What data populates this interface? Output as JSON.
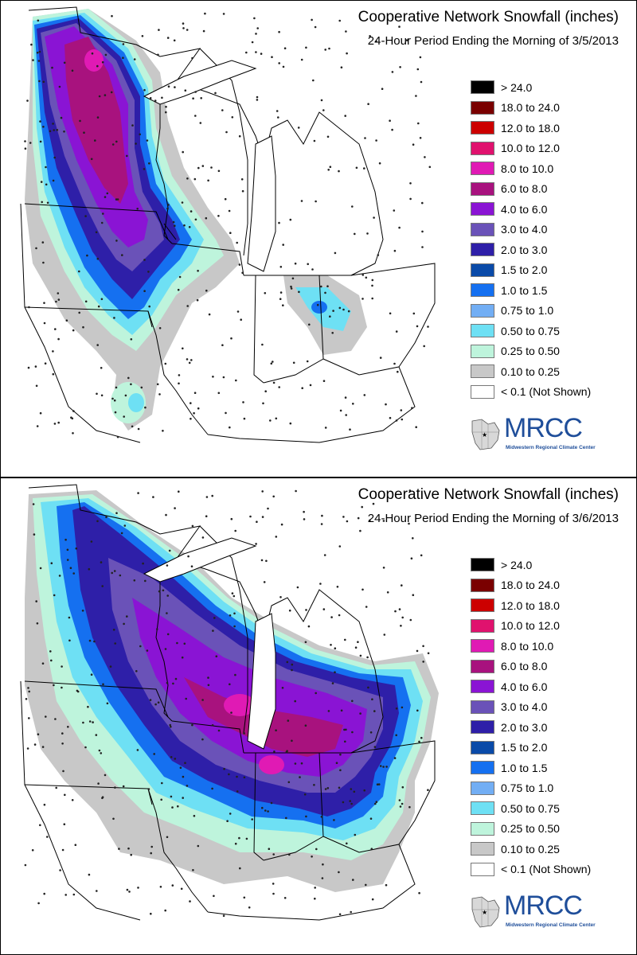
{
  "panels": [
    {
      "title": "Cooperative Network Snowfall (inches)",
      "subtitle": "24-Hour Period Ending the Morning of 3/5/2013"
    },
    {
      "title": "Cooperative Network Snowfall (inches)",
      "subtitle": "24-Hour Period Ending the Morning of 3/6/2013"
    }
  ],
  "legend": [
    {
      "label": "> 24.0",
      "color": "#000000"
    },
    {
      "label": "18.0 to 24.0",
      "color": "#7a0000"
    },
    {
      "label": "12.0 to 18.0",
      "color": "#cc0000"
    },
    {
      "label": "10.0 to 12.0",
      "color": "#e0126e"
    },
    {
      "label": "8.0 to 10.0",
      "color": "#e01ab4"
    },
    {
      "label": "6.0 to 8.0",
      "color": "#a8127e"
    },
    {
      "label": "4.0 to 6.0",
      "color": "#8a14d4"
    },
    {
      "label": "3.0 to 4.0",
      "color": "#6a52b8"
    },
    {
      "label": "2.0 to 3.0",
      "color": "#2e1fa8"
    },
    {
      "label": "1.5 to 2.0",
      "color": "#0a4aa8"
    },
    {
      "label": "1.0 to 1.5",
      "color": "#1570f0"
    },
    {
      "label": "0.75 to 1.0",
      "color": "#72aef4"
    },
    {
      "label": "0.50 to 0.75",
      "color": "#6ee0f4"
    },
    {
      "label": "0.25 to 0.50",
      "color": "#bef4dc"
    },
    {
      "label": "0.10 to 0.25",
      "color": "#c8c8c8"
    },
    {
      "label": "< 0.1 (Not Shown)",
      "color": "#ffffff"
    }
  ],
  "logo": {
    "text": "MRCC",
    "subtext": "Midwestern Regional Climate Center"
  }
}
